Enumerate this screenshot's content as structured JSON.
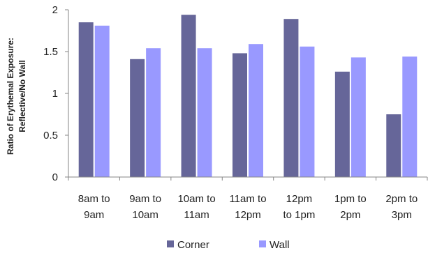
{
  "chart_data": {
    "type": "bar",
    "title": "",
    "xlabel": "",
    "ylabel": "Ratio of Erythemal Exposure: Reflective/No Wall",
    "ylabel_lines": [
      "Ratio of Erythemal Exposure:",
      "Reflective/No Wall"
    ],
    "ylim": [
      0,
      2
    ],
    "yticks": [
      0,
      0.5,
      1,
      1.5,
      2
    ],
    "ytick_labels": [
      "0",
      "0.5",
      "1",
      "1.5",
      "2"
    ],
    "grid": false,
    "legend_position": "bottom",
    "categories": [
      "8am to 9am",
      "9am to 10am",
      "10am to 11am",
      "11am to 12pm",
      "12pm to 1pm",
      "1pm to 2pm",
      "2pm to 3pm"
    ],
    "category_lines": [
      [
        "8am to",
        "9am"
      ],
      [
        "9am to",
        "10am"
      ],
      [
        "10am to",
        "11am"
      ],
      [
        "11am to",
        "12pm"
      ],
      [
        "12pm",
        "to 1pm"
      ],
      [
        "1pm to",
        "2pm"
      ],
      [
        "2pm to",
        "3pm"
      ]
    ],
    "series": [
      {
        "name": "Corner",
        "color": "#666699",
        "values": [
          1.85,
          1.41,
          1.94,
          1.48,
          1.89,
          1.26,
          0.75
        ]
      },
      {
        "name": "Wall",
        "color": "#9999ff",
        "values": [
          1.81,
          1.54,
          1.54,
          1.59,
          1.56,
          1.43,
          1.44
        ]
      }
    ]
  }
}
